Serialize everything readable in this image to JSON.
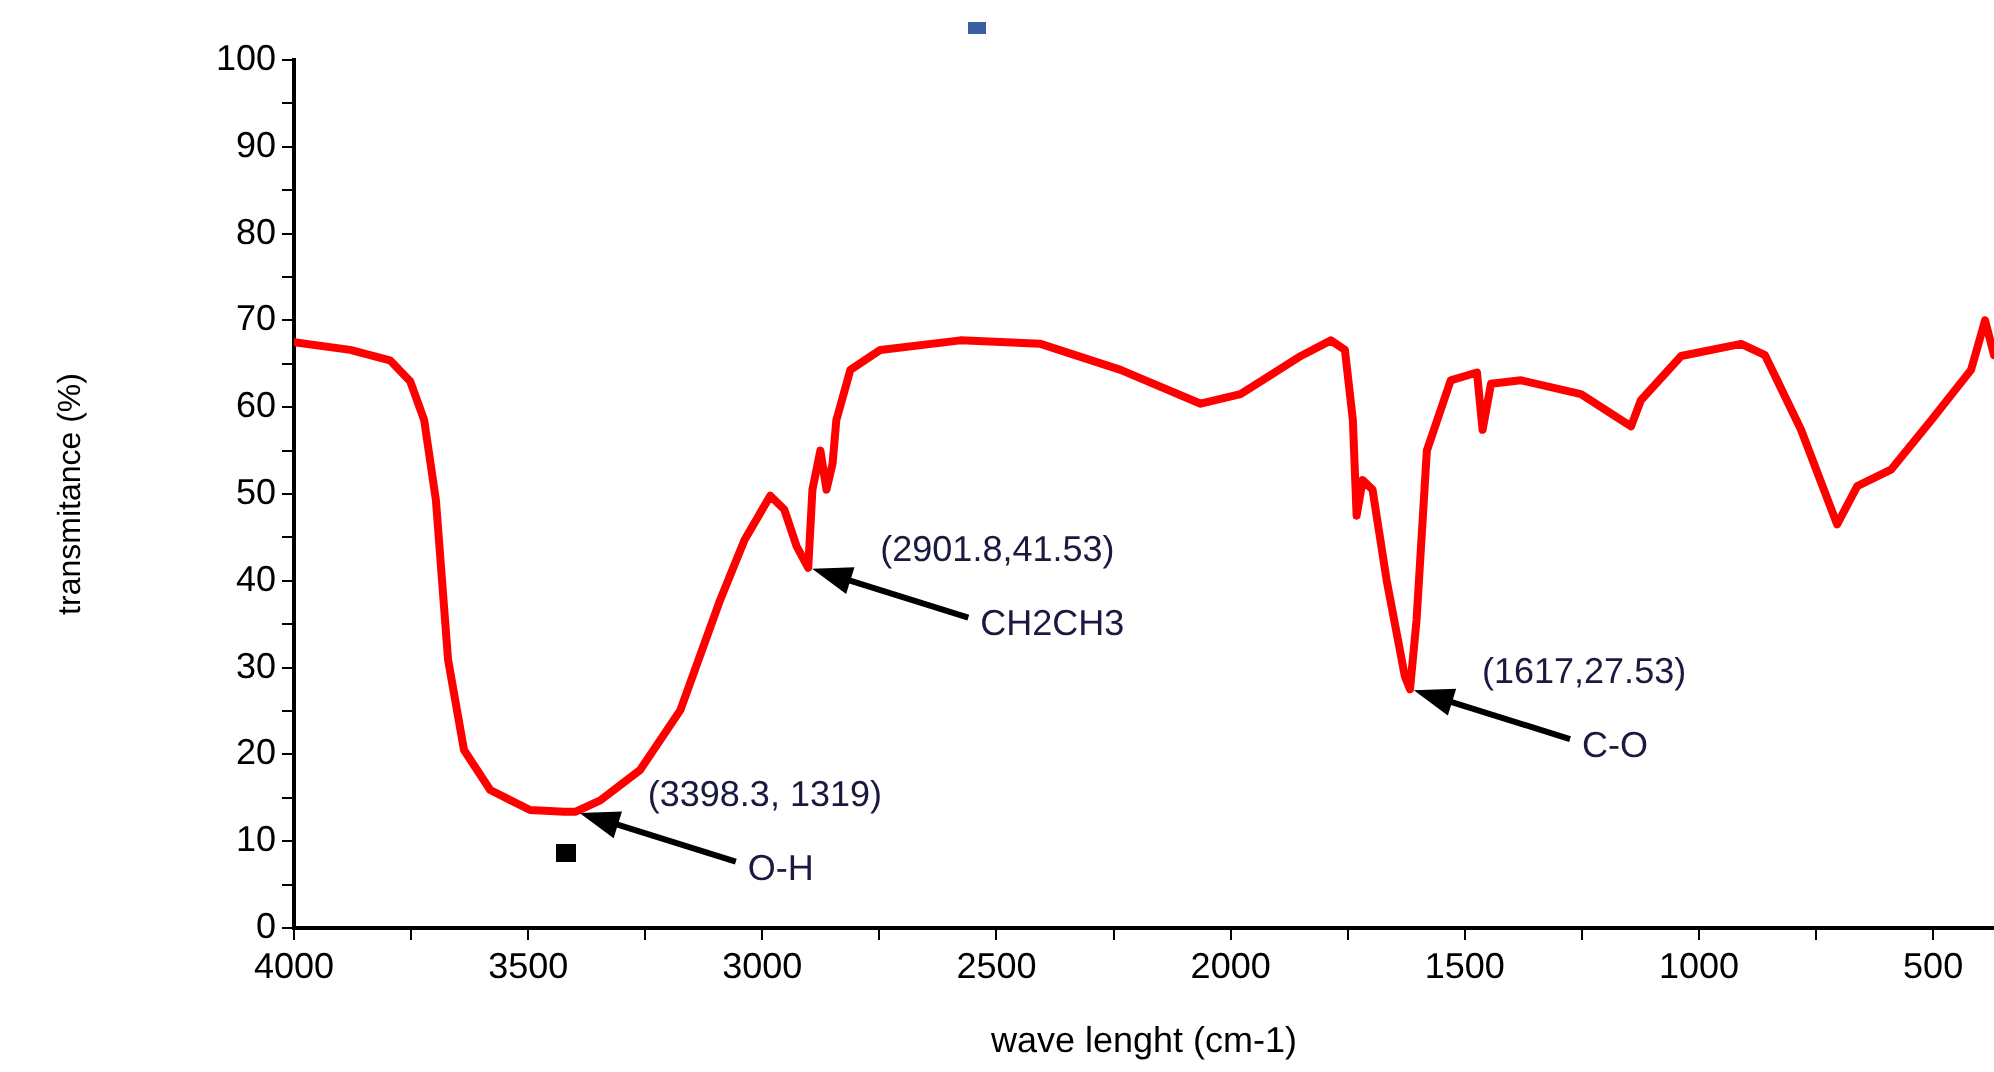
{
  "chart_data": {
    "type": "line",
    "xlabel": "wave lenght (cm-1)",
    "ylabel": "transmitance (%)",
    "x": [
      4000,
      3880,
      3795,
      3752,
      3722,
      3697,
      3671,
      3637,
      3581,
      3496,
      3423,
      3398.3,
      3346,
      3261,
      3175,
      3090,
      3038,
      2983,
      2953,
      2927,
      2902,
      2893,
      2876,
      2863,
      2850,
      2842,
      2812,
      2748,
      2577,
      2406,
      2235,
      2064,
      1979,
      1850,
      1786,
      1756,
      1739,
      1731,
      1718,
      1697,
      1667,
      1628,
      1617,
      1603,
      1581,
      1530,
      1474,
      1462,
      1444,
      1380,
      1252,
      1145,
      1124,
      1038,
      910,
      859,
      782,
      705,
      662,
      590,
      504,
      419,
      389,
      370
    ],
    "series": [
      {
        "color": "#ff0000",
        "values": [
          67.5,
          66.6,
          65.4,
          63,
          58.5,
          49.3,
          30.9,
          20.5,
          15.9,
          13.6,
          13.4,
          13.4,
          14.7,
          18.2,
          25.1,
          37.8,
          44.7,
          49.8,
          48.2,
          44,
          41.5,
          50.5,
          55,
          50.5,
          53.5,
          58.5,
          64.3,
          66.6,
          67.7,
          67.3,
          64.3,
          60.4,
          61.5,
          65.9,
          67.7,
          66.6,
          58.5,
          47.5,
          51.6,
          50.5,
          40.1,
          29,
          27.5,
          35.5,
          55,
          63.1,
          64,
          57.4,
          62.7,
          63.1,
          61.5,
          57.8,
          60.8,
          65.9,
          67.3,
          66,
          57.4,
          46.5,
          50.9,
          52.8,
          58.5,
          64.3,
          70,
          66
        ]
      }
    ],
    "xlim": [
      4000,
      370
    ],
    "xticks": [
      4000,
      {
        "value": 3750,
        "label": null
      },
      3500,
      {
        "value": 3250,
        "label": null
      },
      3000,
      {
        "value": 2750,
        "label": null
      },
      2500,
      {
        "value": 2250,
        "label": null
      },
      2000,
      {
        "value": 1750,
        "label": null
      },
      1500,
      {
        "value": 1250,
        "label": null
      },
      1000,
      {
        "value": 750,
        "label": null
      },
      500
    ],
    "ylim": [
      0,
      100
    ],
    "yticks": [
      0,
      {
        "value": 5,
        "label": null
      },
      10,
      {
        "value": 15,
        "label": null
      },
      20,
      {
        "value": 25,
        "label": null
      },
      30,
      {
        "value": 35,
        "label": null
      },
      40,
      {
        "value": 45,
        "label": null
      },
      50,
      {
        "value": 55,
        "label": null
      },
      60,
      {
        "value": 65,
        "label": null
      },
      70,
      {
        "value": 75,
        "label": null
      },
      80,
      {
        "value": 85,
        "label": null
      },
      90,
      {
        "value": 95,
        "label": null
      },
      100
    ],
    "annotations": [
      {
        "text": "(3398.3, 1319)",
        "x": 3398.3,
        "y": 13.4
      },
      "O-H",
      {
        "text": "(2901.8,41.53)",
        "x": 2901.8,
        "y": 41.53
      },
      "CH2CH3",
      {
        "text": "(1617,27.53)",
        "x": 1617,
        "y": 27.53
      },
      "C-O"
    ],
    "grid": false,
    "legend": false,
    "marker": "none",
    "line_style": "solid"
  }
}
